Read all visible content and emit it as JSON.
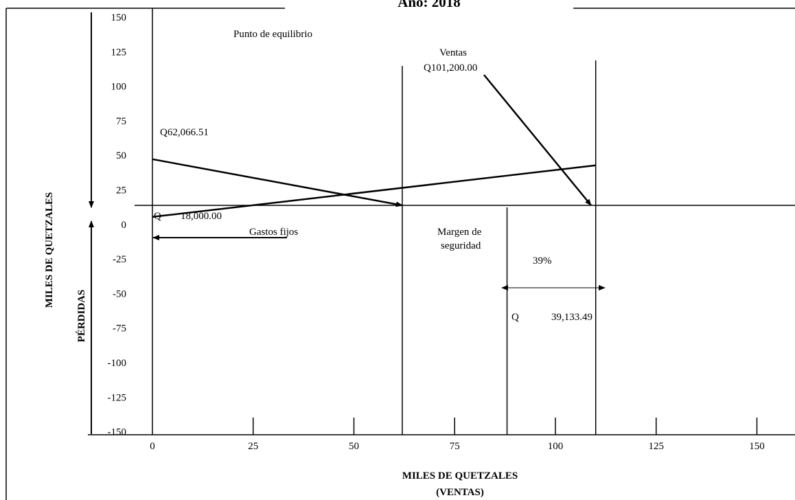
{
  "chart_data": {
    "type": "line",
    "title": "Año: 2018",
    "xlabel": "MILES DE QUETZALES",
    "xlabel_sub": "(VENTAS)",
    "ylabel_top": "MILES DE QUETZALES",
    "ylabel_bottom": "PÉRDIDAS",
    "x_ticks": [
      "0",
      "25",
      "50",
      "75",
      "100",
      "125",
      "150"
    ],
    "y_ticks": [
      "150",
      "125",
      "100",
      "75",
      "50",
      "25",
      "0",
      "-25",
      "-50",
      "-75",
      "-100",
      "-125",
      "-150"
    ],
    "xlim": [
      0,
      150
    ],
    "ylim": [
      -150,
      150
    ],
    "lines": [
      {
        "name": "descending",
        "x": [
          0,
          62
        ],
        "y": [
          60,
          0
        ]
      },
      {
        "name": "ascending",
        "x": [
          0,
          110
        ],
        "y": [
          -15,
          52
        ]
      }
    ],
    "reference_lines_x": [
      62,
      88,
      110
    ],
    "annotations": {
      "equilibrium": "Punto de equilibrio",
      "sales_label": "Ventas",
      "sales_value": "Q101,200.00",
      "start_value": "Q62,066.51",
      "fixed_q": "Q",
      "fixed_value": "18,000.00",
      "fixed_costs": "Gastos fijos",
      "margin_line1": "Margen de",
      "margin_line2": "seguridad",
      "margin_pct": "39%",
      "margin_q": "Q",
      "margin_value": "39,133.49"
    }
  }
}
